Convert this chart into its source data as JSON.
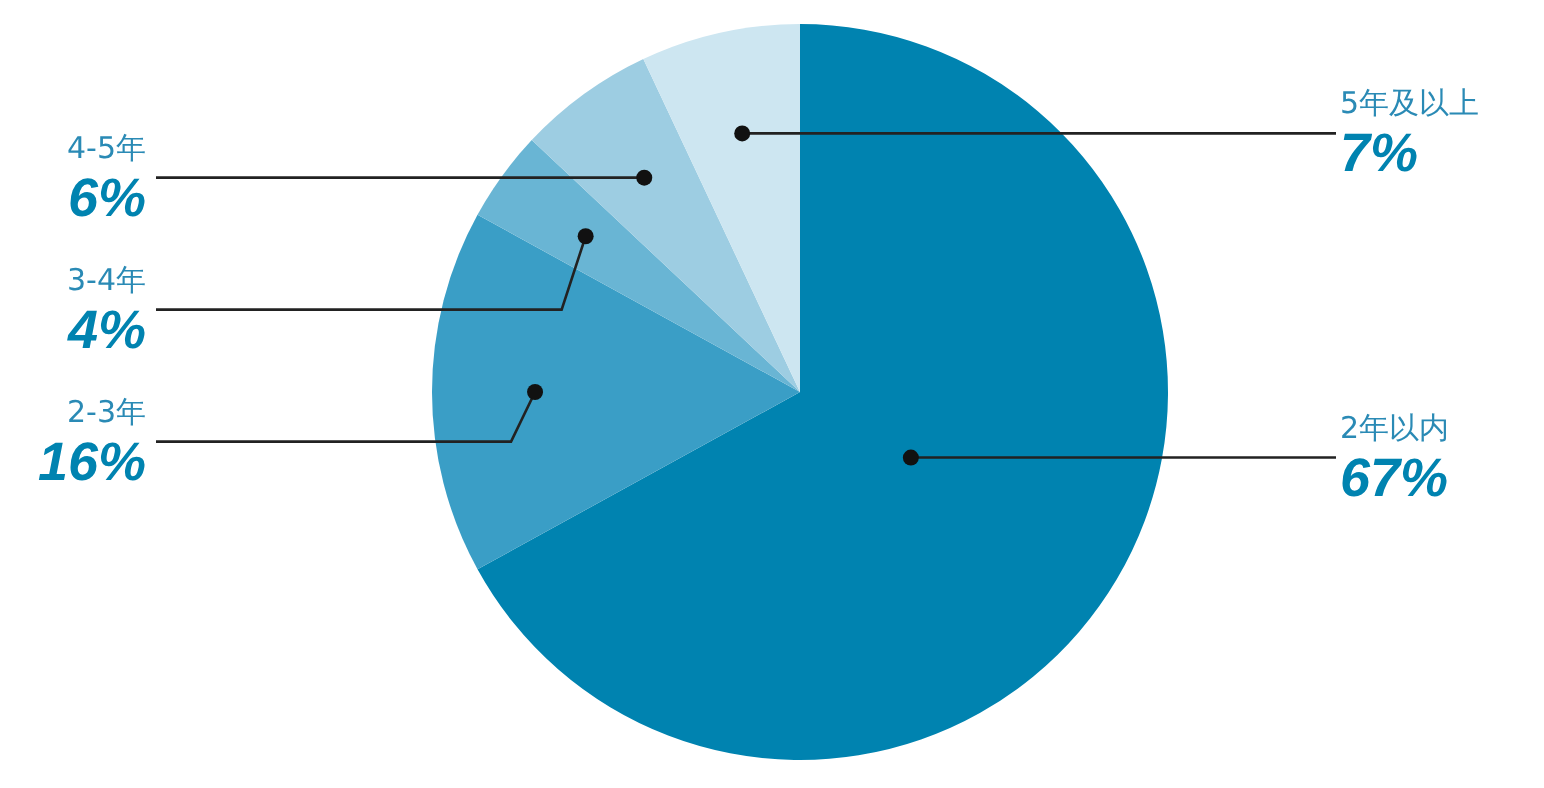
{
  "chart_data": {
    "type": "pie",
    "categories": [
      "2年以内",
      "2-3年",
      "3-4年",
      "4-5年",
      "5年及以上"
    ],
    "values": [
      67,
      16,
      4,
      6,
      7
    ],
    "colors": [
      "#0083b0",
      "#3a9ec6",
      "#69b5d4",
      "#9dcde2",
      "#cde6f1"
    ],
    "value_labels": [
      "67%",
      "16%",
      "4%",
      "6%",
      "7%"
    ]
  }
}
